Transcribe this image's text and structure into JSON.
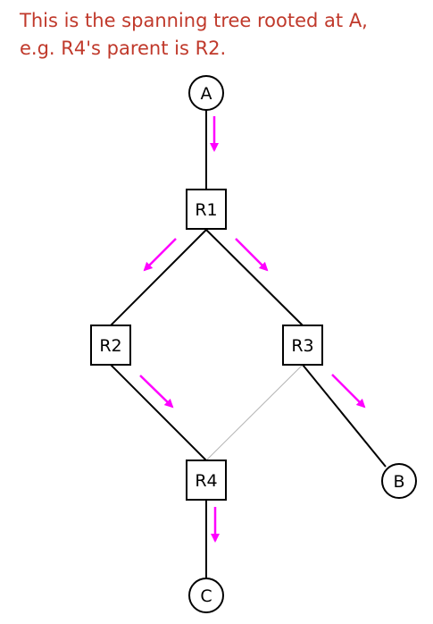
{
  "caption": {
    "line1": "This is the spanning tree rooted at A,",
    "line2": "e.g. R4's parent is R2."
  },
  "colors": {
    "caption": "#c0392b",
    "tree_edge": "#000000",
    "non_tree_edge": "#b3b3b3",
    "arrow": "#ff00ff"
  },
  "nodes": [
    {
      "id": "A",
      "label": "A",
      "shape": "circle"
    },
    {
      "id": "R1",
      "label": "R1",
      "shape": "square"
    },
    {
      "id": "R2",
      "label": "R2",
      "shape": "square"
    },
    {
      "id": "R3",
      "label": "R3",
      "shape": "square"
    },
    {
      "id": "R4",
      "label": "R4",
      "shape": "square"
    },
    {
      "id": "B",
      "label": "B",
      "shape": "circle"
    },
    {
      "id": "C",
      "label": "C",
      "shape": "circle"
    }
  ],
  "edges": [
    {
      "from": "A",
      "to": "R1",
      "tree": true
    },
    {
      "from": "R1",
      "to": "R2",
      "tree": true
    },
    {
      "from": "R1",
      "to": "R3",
      "tree": true
    },
    {
      "from": "R2",
      "to": "R4",
      "tree": true
    },
    {
      "from": "R3",
      "to": "B",
      "tree": true
    },
    {
      "from": "R4",
      "to": "C",
      "tree": true
    },
    {
      "from": "R3",
      "to": "R4",
      "tree": false
    }
  ]
}
